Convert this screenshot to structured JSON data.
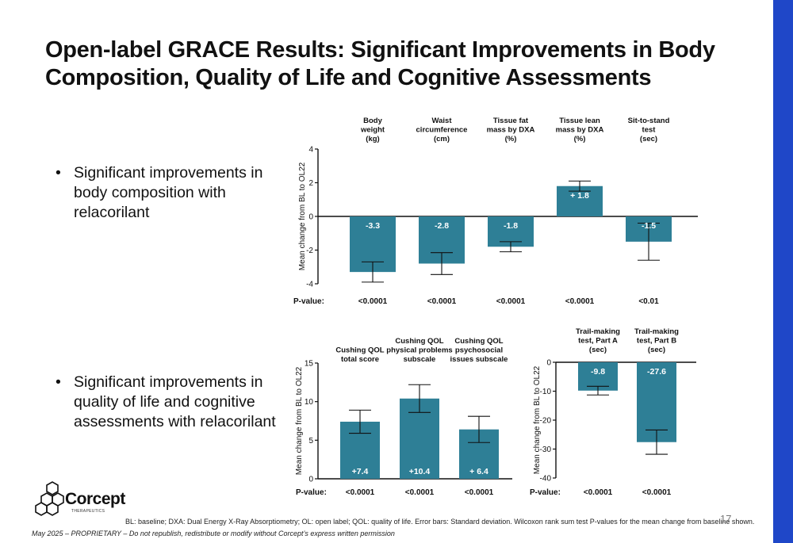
{
  "title": "Open-label GRACE Results: Significant Improvements in Body Composition, Quality of Life and Cognitive Assessments",
  "bullets": [
    "Significant improvements in body composition with relacorilant",
    "Significant improvements in quality of life and cognitive assessments with relacorilant"
  ],
  "colors": {
    "bar": "#2e7f96",
    "accent": "#1f47c8"
  },
  "chart_data": [
    {
      "type": "bar",
      "categories": [
        [
          "Body",
          "weight",
          "(kg)"
        ],
        [
          "Waist",
          "circumference",
          "(cm)"
        ],
        [
          "Tissue fat",
          "mass by DXA",
          "(%)"
        ],
        [
          "Tissue lean",
          "mass by DXA",
          "(%)"
        ],
        [
          "Sit-to-stand",
          "test",
          "(sec)"
        ]
      ],
      "values": [
        -3.3,
        -2.8,
        -1.8,
        1.8,
        -1.5
      ],
      "labels": [
        "-3.3",
        "-2.8",
        "-1.8",
        "+ 1.8",
        "-1.5"
      ],
      "errors": [
        0.6,
        0.65,
        0.3,
        0.3,
        1.1
      ],
      "p_values": [
        "<0.0001",
        "<0.0001",
        "<0.0001",
        "<0.0001",
        "<0.01"
      ],
      "ylabel": "Mean change from BL to OL22",
      "ylim": [
        -4,
        4
      ],
      "yticks": [
        -4,
        -2,
        0,
        2,
        4
      ],
      "p_label": "P-value:"
    },
    {
      "type": "bar",
      "categories": [
        [
          "Cushing QOL",
          "total score"
        ],
        [
          "Cushing QOL",
          "physical problems",
          "subscale"
        ],
        [
          "Cushing QOL",
          "psychosocial",
          "issues subscale"
        ]
      ],
      "values": [
        7.4,
        10.4,
        6.4
      ],
      "labels": [
        "+7.4",
        "+10.4",
        "+ 6.4"
      ],
      "errors": [
        1.5,
        1.8,
        1.7
      ],
      "p_values": [
        "<0.0001",
        "<0.0001",
        "<0.0001"
      ],
      "ylabel": "Mean change from BL to OL22",
      "ylim": [
        0,
        15
      ],
      "yticks": [
        0,
        5,
        10,
        15
      ],
      "p_label": "P-value:"
    },
    {
      "type": "bar",
      "categories": [
        [
          "Trail-making",
          "test, Part A",
          "(sec)"
        ],
        [
          "Trail-making",
          "test, Part B",
          "(sec)"
        ]
      ],
      "values": [
        -9.8,
        -27.6
      ],
      "labels": [
        "-9.8",
        "-27.6"
      ],
      "errors": [
        1.5,
        4.2
      ],
      "p_values": [
        "<0.0001",
        "<0.0001"
      ],
      "ylabel": "Mean change from BL to OL22",
      "ylim": [
        -40,
        0
      ],
      "yticks": [
        -40,
        -30,
        -20,
        -10,
        0
      ],
      "p_label": "P-value:"
    }
  ],
  "footnote": "BL: baseline; DXA: Dual Energy X-Ray Absorptiometry; OL: open label; QOL: quality of life. Error bars: Standard deviation. Wilcoxon rank sum test P-values for the mean change from baseline shown.",
  "footer": "May 2025 – PROPRIETARY – Do not republish, redistribute or modify without Corcept’s express written permission",
  "page_number": "17",
  "logo": {
    "name": "Corcept",
    "tagline": "THERAPEUTICS"
  }
}
